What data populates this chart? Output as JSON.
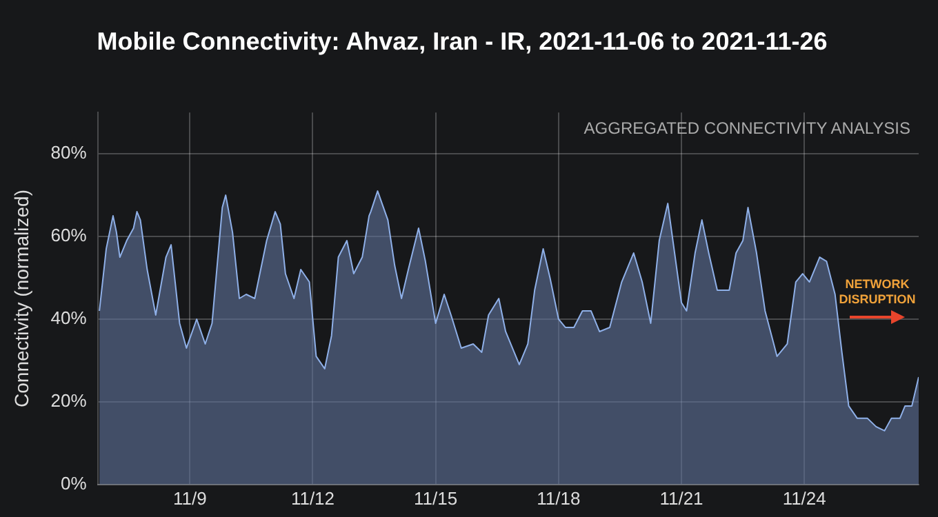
{
  "chart_data": {
    "type": "area",
    "title": "Mobile Connectivity: Ahvaz, Iran - IR, 2021-11-06 to 2021-11-26",
    "ylabel": "Connectivity (normalized)",
    "annotations": [
      "AGGREGATED CONNECTIVITY ANALYSIS",
      "NETWORK DISRUPTION"
    ],
    "x": [
      "2021-11-06T19:00",
      "2021-11-06T23:00",
      "2021-11-07T03:00",
      "2021-11-07T05:00",
      "2021-11-07T07:00",
      "2021-11-07T11:00",
      "2021-11-07T15:00",
      "2021-11-07T17:00",
      "2021-11-07T19:00",
      "2021-11-07T23:00",
      "2021-11-08T04:00",
      "2021-11-08T10:00",
      "2021-11-08T13:00",
      "2021-11-08T18:00",
      "2021-11-08T22:00",
      "2021-11-09T04:00",
      "2021-11-09T09:00",
      "2021-11-09T13:00",
      "2021-11-09T19:00",
      "2021-11-09T21:00",
      "2021-11-10T01:00",
      "2021-11-10T05:00",
      "2021-11-10T09:00",
      "2021-11-10T14:00",
      "2021-11-10T21:00",
      "2021-11-11T02:00",
      "2021-11-11T05:00",
      "2021-11-11T08:00",
      "2021-11-11T13:00",
      "2021-11-11T17:00",
      "2021-11-11T22:00",
      "2021-11-12T02:00",
      "2021-11-12T07:00",
      "2021-11-12T11:00",
      "2021-11-12T15:00",
      "2021-11-12T20:00",
      "2021-11-13T00:00",
      "2021-11-13T05:00",
      "2021-11-13T09:00",
      "2021-11-13T10:00",
      "2021-11-13T14:00",
      "2021-11-13T20:00",
      "2021-11-14T00:00",
      "2021-11-14T04:00",
      "2021-11-14T08:00",
      "2021-11-14T14:00",
      "2021-11-14T18:00",
      "2021-11-15T00:00",
      "2021-11-15T05:00",
      "2021-11-15T09:00",
      "2021-11-15T15:00",
      "2021-11-15T22:00",
      "2021-11-16T03:00",
      "2021-11-16T07:00",
      "2021-11-16T13:00",
      "2021-11-16T17:00",
      "2021-11-17T01:00",
      "2021-11-17T06:00",
      "2021-11-17T10:00",
      "2021-11-17T15:00",
      "2021-11-17T19:00",
      "2021-11-18T00:00",
      "2021-11-18T04:00",
      "2021-11-18T09:00",
      "2021-11-18T14:00",
      "2021-11-18T19:00",
      "2021-11-19T00:00",
      "2021-11-19T06:00",
      "2021-11-19T13:00",
      "2021-11-19T20:00",
      "2021-11-20T01:00",
      "2021-11-20T06:00",
      "2021-11-20T11:00",
      "2021-11-20T16:00",
      "2021-11-20T19:00",
      "2021-11-21T00:00",
      "2021-11-21T03:00",
      "2021-11-21T08:00",
      "2021-11-21T12:00",
      "2021-11-21T16:00",
      "2021-11-21T21:00",
      "2021-11-22T04:00",
      "2021-11-22T08:00",
      "2021-11-22T12:00",
      "2021-11-22T15:00",
      "2021-11-22T20:00",
      "2021-11-23T01:00",
      "2021-11-23T08:00",
      "2021-11-23T14:00",
      "2021-11-23T19:00",
      "2021-11-23T23:00",
      "2021-11-24T03:00",
      "2021-11-24T09:00",
      "2021-11-24T13:00",
      "2021-11-24T18:00",
      "2021-11-24T22:00",
      "2021-11-25T02:00",
      "2021-11-25T07:00",
      "2021-11-25T13:00",
      "2021-11-25T18:00",
      "2021-11-25T23:00",
      "2021-11-26T03:00",
      "2021-11-26T08:00",
      "2021-11-26T11:00",
      "2021-11-26T15:00",
      "2021-11-26T19:00"
    ],
    "series": [
      {
        "color": "#8fb0e8",
        "values": [
          42,
          57,
          65,
          61,
          55,
          59,
          62,
          66,
          64,
          52,
          41,
          55,
          58,
          39,
          33,
          40,
          34,
          39,
          67,
          70,
          61,
          45,
          46,
          45,
          59,
          66,
          63,
          51,
          45,
          52,
          49,
          31,
          28,
          36,
          55,
          59,
          51,
          55,
          65,
          66,
          71,
          64,
          53,
          45,
          52,
          62,
          54,
          39,
          46,
          41,
          33,
          34,
          32,
          41,
          45,
          37,
          29,
          34,
          47,
          57,
          50,
          40,
          38,
          38,
          42,
          42,
          37,
          38,
          49,
          56,
          49,
          39,
          59,
          68,
          59,
          44,
          42,
          56,
          64,
          56,
          47,
          47,
          56,
          59,
          67,
          56,
          42,
          31,
          34,
          49,
          51,
          49,
          55,
          54,
          46,
          32,
          19,
          16,
          16,
          14,
          13,
          16,
          16,
          19,
          19,
          26
        ]
      }
    ],
    "xlim": [
      "2021-11-06T18:00",
      "2021-11-26T19:00"
    ],
    "xticks": [
      {
        "value": "2021-11-09",
        "label": "11/9"
      },
      {
        "value": "2021-11-12",
        "label": "11/12"
      },
      {
        "value": "2021-11-15",
        "label": "11/15"
      },
      {
        "value": "2021-11-18",
        "label": "11/18"
      },
      {
        "value": "2021-11-21",
        "label": "11/21"
      },
      {
        "value": "2021-11-24",
        "label": "11/24"
      }
    ],
    "ylim": [
      0,
      90
    ],
    "yticks": [
      {
        "value": 0,
        "label": "0%"
      },
      {
        "value": 20,
        "label": "20%"
      },
      {
        "value": 40,
        "label": "40%"
      },
      {
        "value": 60,
        "label": "60%"
      },
      {
        "value": 80,
        "label": "80%"
      }
    ],
    "grid": true,
    "legend": false
  }
}
